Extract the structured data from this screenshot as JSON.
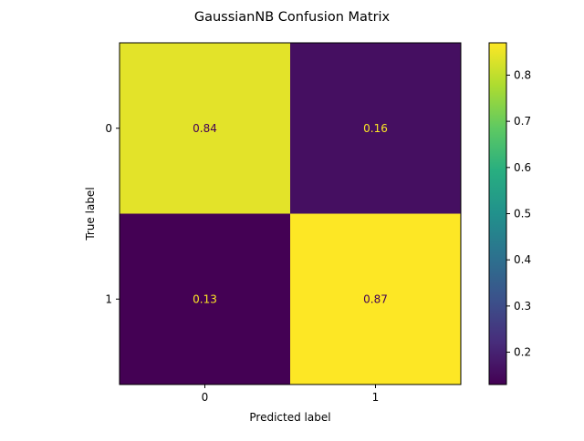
{
  "chart_data": {
    "type": "heatmap",
    "title": "GaussianNB Confusion Matrix",
    "xlabel": "Predicted label",
    "ylabel": "True label",
    "x_categories": [
      "0",
      "1"
    ],
    "y_categories": [
      "0",
      "1"
    ],
    "values": [
      [
        0.84,
        0.16
      ],
      [
        0.13,
        0.87
      ]
    ],
    "colormap": "viridis",
    "colorbar": {
      "range": [
        0.13,
        0.87
      ],
      "ticks": [
        0.2,
        0.3,
        0.4,
        0.5,
        0.6,
        0.7,
        0.8
      ],
      "tick_labels": [
        "0.2",
        "0.3",
        "0.4",
        "0.5",
        "0.6",
        "0.7",
        "0.8"
      ]
    },
    "annotation_colors": {
      "on_dark": "#fde725",
      "on_light": "#440154"
    }
  }
}
